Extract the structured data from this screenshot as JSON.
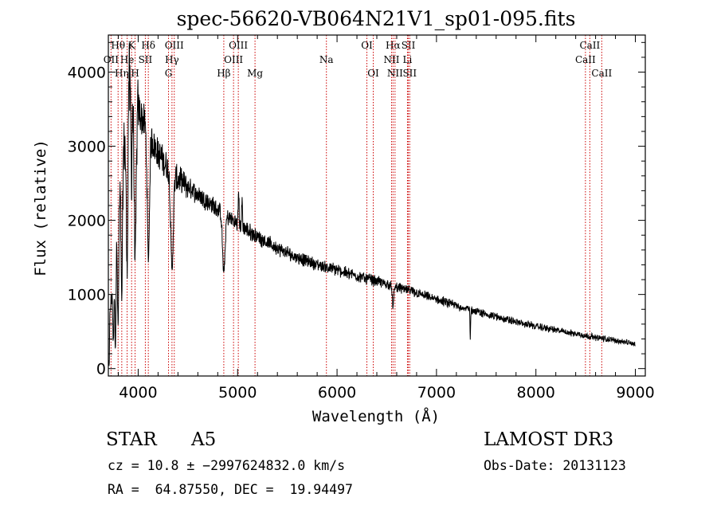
{
  "chart_data": {
    "type": "line",
    "title": "spec-56620-VB064N21V1_sp01-095.fits",
    "xlabel": "Wavelength (Å)",
    "ylabel": "Flux (relative)",
    "xlim": [
      3700,
      9100
    ],
    "ylim": [
      -100,
      4500
    ],
    "xticks": [
      4000,
      5000,
      6000,
      7000,
      8000,
      9000
    ],
    "yticks": [
      0,
      1000,
      2000,
      3000,
      4000
    ],
    "continuum": [
      [
        3700,
        300
      ],
      [
        3720,
        800
      ],
      [
        3760,
        1400
      ],
      [
        3800,
        2100
      ],
      [
        3850,
        2900
      ],
      [
        3900,
        3400
      ],
      [
        3950,
        3600
      ],
      [
        4000,
        3500
      ],
      [
        4100,
        3200
      ],
      [
        4200,
        2900
      ],
      [
        4300,
        2700
      ],
      [
        4400,
        2550
      ],
      [
        4500,
        2450
      ],
      [
        4600,
        2350
      ],
      [
        4700,
        2250
      ],
      [
        4800,
        2150
      ],
      [
        4900,
        2050
      ],
      [
        5000,
        1950
      ],
      [
        5200,
        1780
      ],
      [
        5400,
        1620
      ],
      [
        5600,
        1500
      ],
      [
        5800,
        1400
      ],
      [
        6000,
        1330
      ],
      [
        6200,
        1250
      ],
      [
        6400,
        1180
      ],
      [
        6600,
        1100
      ],
      [
        6800,
        1020
      ],
      [
        7000,
        930
      ],
      [
        7200,
        850
      ],
      [
        7400,
        770
      ],
      [
        7600,
        700
      ],
      [
        7800,
        630
      ],
      [
        8000,
        570
      ],
      [
        8200,
        520
      ],
      [
        8400,
        470
      ],
      [
        8600,
        420
      ],
      [
        8800,
        380
      ],
      [
        9000,
        330
      ]
    ],
    "absorption_features": [
      {
        "w": 3750,
        "d": 900,
        "s": 8
      },
      {
        "w": 3771,
        "d": 1300,
        "s": 8
      },
      {
        "w": 3798,
        "d": 1500,
        "s": 9
      },
      {
        "w": 3835,
        "d": 1700,
        "s": 10
      },
      {
        "w": 3889,
        "d": 2000,
        "s": 12
      },
      {
        "w": 3933,
        "d": 1000,
        "s": 6
      },
      {
        "w": 3970,
        "d": 2100,
        "s": 14
      },
      {
        "w": 4102,
        "d": 1700,
        "s": 16
      },
      {
        "w": 4340,
        "d": 1300,
        "s": 18
      },
      {
        "w": 4861,
        "d": 800,
        "s": 18
      },
      {
        "w": 6563,
        "d": 300,
        "s": 10
      },
      {
        "w": 7340,
        "d": 420,
        "s": 4
      }
    ],
    "emission_features": [
      {
        "w": 3905,
        "h": 800,
        "s": 10
      },
      {
        "w": 5010,
        "h": 500,
        "s": 6
      },
      {
        "w": 5045,
        "h": 350,
        "s": 6
      }
    ],
    "line_markers": [
      {
        "label": "Hθ",
        "wavelength": 3798,
        "row": 1
      },
      {
        "label": "K",
        "wavelength": 3934,
        "row": 1
      },
      {
        "label": "Hδ",
        "wavelength": 4102,
        "row": 1
      },
      {
        "label": "OIII",
        "wavelength": 4363,
        "row": 1
      },
      {
        "label": "OIII",
        "wavelength": 5007,
        "row": 1
      },
      {
        "label": "OI",
        "wavelength": 6300,
        "row": 1
      },
      {
        "label": "Hα",
        "wavelength": 6563,
        "row": 1
      },
      {
        "label": "SII",
        "wavelength": 6717,
        "row": 1
      },
      {
        "label": "CaII",
        "wavelength": 8542,
        "row": 1
      },
      {
        "label": "OII",
        "wavelength": 3727,
        "row": 2
      },
      {
        "label": "He",
        "wavelength": 3889,
        "row": 2
      },
      {
        "label": "SII",
        "wavelength": 4072,
        "row": 2
      },
      {
        "label": "Hγ",
        "wavelength": 4340,
        "row": 2
      },
      {
        "label": "OIII",
        "wavelength": 4959,
        "row": 2
      },
      {
        "label": "Na",
        "wavelength": 5893,
        "row": 2
      },
      {
        "label": "NII",
        "wavelength": 6548,
        "row": 2
      },
      {
        "label": "Li",
        "wavelength": 6708,
        "row": 2
      },
      {
        "label": "CaII",
        "wavelength": 8498,
        "row": 2
      },
      {
        "label": "Hη",
        "wavelength": 3835,
        "row": 3
      },
      {
        "label": "H",
        "wavelength": 3969,
        "row": 3
      },
      {
        "label": "G",
        "wavelength": 4305,
        "row": 3
      },
      {
        "label": "Hβ",
        "wavelength": 4861,
        "row": 3
      },
      {
        "label": "Mg",
        "wavelength": 5175,
        "row": 3
      },
      {
        "label": "OI",
        "wavelength": 6364,
        "row": 3
      },
      {
        "label": "NII",
        "wavelength": 6583,
        "row": 3
      },
      {
        "label": "SII",
        "wavelength": 6731,
        "row": 3
      },
      {
        "label": "CaII",
        "wavelength": 8662,
        "row": 3
      }
    ]
  },
  "info": {
    "object_class": "STAR",
    "subclass": "A5",
    "survey": "LAMOST DR3",
    "redshift": "cz = 10.8 ± −2997624832.0 km/s",
    "obs_date": "Obs-Date: 20131123",
    "coords": "RA =  64.87550, DEC =  19.94497"
  },
  "colors": {
    "marker": "#cc0000",
    "spectrum": "#000000",
    "axis": "#000000"
  }
}
